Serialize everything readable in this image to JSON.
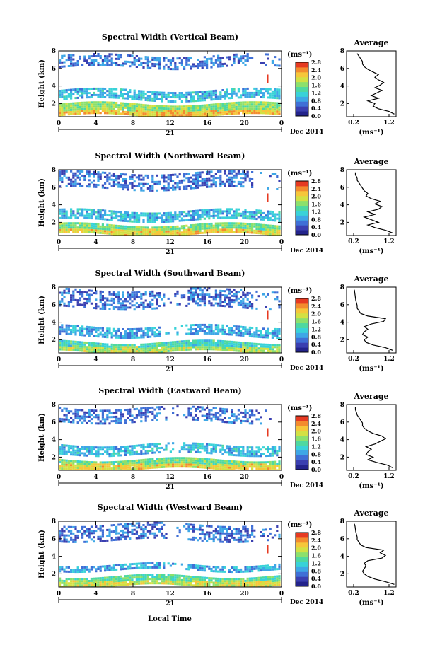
{
  "footer": {
    "xlabel": "Local Time"
  },
  "panels_common": {
    "ylabel": "Height (km)",
    "unit": "(ms⁻¹)",
    "date_label": "21",
    "date_right": "Dec 2014",
    "avg_title": "Average",
    "avg_xlabel": "(ms⁻¹)"
  },
  "colorbar": {
    "stops": [
      "#23238b",
      "#3a3fb0",
      "#3f6fd6",
      "#3ea7e6",
      "#39d2d8",
      "#4ed8a0",
      "#8ce06c",
      "#d3e043",
      "#f6c63a",
      "#f38b2e",
      "#e63a22"
    ]
  },
  "chart_data": [
    {
      "type": "heatmap",
      "title": "Spectral Width (Vertical Beam)",
      "xlabel": "",
      "ylabel": "Height (km)",
      "xlim": [
        0,
        24
      ],
      "ylim": [
        0.5,
        8
      ],
      "xticks": [
        "0",
        "4",
        "8",
        "12",
        "16",
        "20",
        "0"
      ],
      "yticks": [
        "2",
        "4",
        "6",
        "8"
      ],
      "colorbar_ticks": [
        "0.0",
        "0.4",
        "0.8",
        "1.2",
        "1.6",
        "2.0",
        "2.4",
        "2.8"
      ],
      "profile": {
        "title": "Average",
        "xlabel": "(ms⁻¹)",
        "xlim": [
          0,
          1.4
        ],
        "xticks": [
          "0.2",
          "1.2"
        ],
        "yticks": [
          "2",
          "4",
          "6",
          "8"
        ],
        "x": [
          1.35,
          1.2,
          0.9,
          0.75,
          0.8,
          0.6,
          0.9,
          0.7,
          0.85,
          1.0,
          0.8,
          0.95,
          1.05,
          0.9,
          0.8,
          0.9,
          0.75,
          0.6,
          0.5,
          0.45,
          0.45,
          0.4,
          0.35,
          0.3
        ],
        "y": [
          0.8,
          1.1,
          1.4,
          1.7,
          2.0,
          2.3,
          2.6,
          2.9,
          3.2,
          3.5,
          3.8,
          4.1,
          4.4,
          4.7,
          5.0,
          5.3,
          5.6,
          5.9,
          6.2,
          6.5,
          6.8,
          7.1,
          7.4,
          7.7
        ]
      },
      "values": {
        "layers": [
          [
            0.8,
            2.2,
            0.6
          ],
          [
            2.6,
            3.6,
            0.35
          ],
          [
            6.3,
            7.7,
            0.2
          ]
        ]
      }
    },
    {
      "type": "heatmap",
      "title": "Spectral Width (Northward Beam)",
      "xlabel": "",
      "ylabel": "Height (km)",
      "xlim": [
        0,
        24
      ],
      "ylim": [
        0.5,
        8
      ],
      "xticks": [
        "0",
        "4",
        "8",
        "12",
        "16",
        "20",
        "0"
      ],
      "yticks": [
        "2",
        "4",
        "6",
        "8"
      ],
      "colorbar_ticks": [
        "0.0",
        "0.4",
        "0.8",
        "1.2",
        "1.6",
        "2.0",
        "2.4",
        "2.8"
      ],
      "profile": {
        "title": "Average",
        "xlabel": "(ms⁻¹)",
        "xlim": [
          0,
          1.4
        ],
        "xticks": [
          "0.2",
          "1.2"
        ],
        "yticks": [
          "2",
          "4",
          "6",
          "8"
        ],
        "x": [
          1.3,
          1.1,
          0.8,
          0.6,
          0.9,
          0.7,
          0.5,
          0.8,
          0.6,
          0.9,
          1.0,
          0.8,
          0.95,
          0.7,
          0.55,
          0.6,
          0.5,
          0.45,
          0.4,
          0.35,
          0.3,
          0.3,
          0.25,
          0.25
        ],
        "y": [
          0.8,
          1.1,
          1.4,
          1.7,
          2.0,
          2.3,
          2.6,
          2.9,
          3.2,
          3.5,
          3.8,
          4.1,
          4.4,
          4.7,
          5.0,
          5.3,
          5.6,
          5.9,
          6.2,
          6.5,
          6.8,
          7.1,
          7.4,
          7.7
        ]
      },
      "values": {
        "layers": [
          [
            0.8,
            2.0,
            0.55
          ],
          [
            2.4,
            3.6,
            0.35
          ],
          [
            6.0,
            7.8,
            0.2
          ]
        ]
      }
    },
    {
      "type": "heatmap",
      "title": "Spectral Width (Southward Beam)",
      "xlabel": "",
      "ylabel": "Height (km)",
      "xlim": [
        0,
        24
      ],
      "ylim": [
        0.5,
        8
      ],
      "xticks": [
        "0",
        "4",
        "8",
        "12",
        "16",
        "20",
        "0"
      ],
      "yticks": [
        "2",
        "4",
        "6",
        "8"
      ],
      "colorbar_ticks": [
        "0.0",
        "0.4",
        "0.8",
        "1.2",
        "1.6",
        "2.0",
        "2.4",
        "2.8"
      ],
      "profile": {
        "title": "Average",
        "xlabel": "(ms⁻¹)",
        "xlim": [
          0,
          1.4
        ],
        "xticks": [
          "0.2",
          "1.2"
        ],
        "yticks": [
          "2",
          "4",
          "6",
          "8"
        ],
        "x": [
          1.3,
          1.1,
          0.75,
          0.55,
          0.5,
          0.6,
          0.45,
          0.5,
          0.6,
          0.5,
          0.7,
          1.05,
          1.1,
          0.6,
          0.4,
          0.35,
          0.3,
          0.3,
          0.28,
          0.26,
          0.25,
          0.24,
          0.23,
          0.22
        ],
        "y": [
          0.8,
          1.1,
          1.4,
          1.7,
          2.0,
          2.3,
          2.6,
          2.9,
          3.2,
          3.5,
          3.8,
          4.1,
          4.4,
          4.7,
          5.0,
          5.3,
          5.6,
          5.9,
          6.2,
          6.5,
          6.8,
          7.1,
          7.4,
          7.7
        ]
      },
      "values": {
        "layers": [
          [
            0.8,
            1.9,
            0.45
          ],
          [
            2.6,
            3.6,
            0.3
          ],
          [
            5.8,
            7.8,
            0.2
          ]
        ]
      }
    },
    {
      "type": "heatmap",
      "title": "Spectral Width (Eastward Beam)",
      "xlabel": "",
      "ylabel": "Height (km)",
      "xlim": [
        0,
        24
      ],
      "ylim": [
        0.5,
        8
      ],
      "xticks": [
        "0",
        "4",
        "8",
        "12",
        "16",
        "20",
        "0"
      ],
      "yticks": [
        "2",
        "4",
        "6",
        "8"
      ],
      "colorbar_ticks": [
        "0.0",
        "0.4",
        "0.8",
        "1.2",
        "1.6",
        "2.0",
        "2.4",
        "2.8"
      ],
      "profile": {
        "title": "Average",
        "xlabel": "(ms⁻¹)",
        "xlim": [
          0,
          1.4
        ],
        "xticks": [
          "0.2",
          "1.2"
        ],
        "yticks": [
          "2",
          "4",
          "6",
          "8"
        ],
        "x": [
          1.3,
          1.15,
          0.85,
          0.6,
          0.75,
          0.55,
          0.6,
          0.7,
          0.55,
          0.8,
          0.95,
          1.1,
          1.0,
          0.75,
          0.6,
          0.5,
          0.45,
          0.45,
          0.4,
          0.35,
          0.3,
          0.28,
          0.25,
          0.25
        ],
        "y": [
          0.8,
          1.1,
          1.4,
          1.7,
          2.0,
          2.3,
          2.6,
          2.9,
          3.2,
          3.5,
          3.8,
          4.1,
          4.4,
          4.7,
          5.0,
          5.3,
          5.6,
          5.9,
          6.2,
          6.5,
          6.8,
          7.1,
          7.4,
          7.7
        ]
      },
      "values": {
        "layers": [
          [
            0.8,
            2.0,
            0.55
          ],
          [
            2.5,
            3.5,
            0.35
          ],
          [
            6.2,
            7.8,
            0.2
          ]
        ]
      }
    },
    {
      "type": "heatmap",
      "title": "Spectral Width (Westward Beam)",
      "xlabel": "Local Time",
      "ylabel": "Height (km)",
      "xlim": [
        0,
        24
      ],
      "ylim": [
        0.5,
        8
      ],
      "xticks": [
        "0",
        "4",
        "8",
        "12",
        "16",
        "20",
        "0"
      ],
      "yticks": [
        "2",
        "4",
        "6",
        "8"
      ],
      "colorbar_ticks": [
        "0.0",
        "0.4",
        "0.8",
        "1.2",
        "1.6",
        "2.0",
        "2.4",
        "2.8"
      ],
      "profile": {
        "title": "Average",
        "xlabel": "(ms⁻¹)",
        "xlim": [
          0,
          1.4
        ],
        "xticks": [
          "0.2",
          "1.2"
        ],
        "yticks": [
          "2",
          "4",
          "6",
          "8"
        ],
        "x": [
          1.35,
          1.1,
          0.8,
          0.6,
          0.5,
          0.45,
          0.5,
          0.55,
          0.5,
          0.6,
          1.0,
          1.1,
          0.95,
          1.05,
          0.55,
          0.4,
          0.35,
          0.3,
          0.3,
          0.28,
          0.26,
          0.25,
          0.24,
          0.22
        ],
        "y": [
          0.8,
          1.1,
          1.4,
          1.7,
          2.0,
          2.3,
          2.6,
          2.9,
          3.2,
          3.5,
          3.8,
          4.1,
          4.4,
          4.7,
          5.0,
          5.3,
          5.6,
          5.9,
          6.2,
          6.5,
          6.8,
          7.1,
          7.4,
          7.7
        ]
      },
      "values": {
        "layers": [
          [
            0.8,
            1.8,
            0.5
          ],
          [
            2.6,
            3.3,
            0.3
          ],
          [
            6.0,
            7.8,
            0.2
          ]
        ]
      }
    }
  ]
}
